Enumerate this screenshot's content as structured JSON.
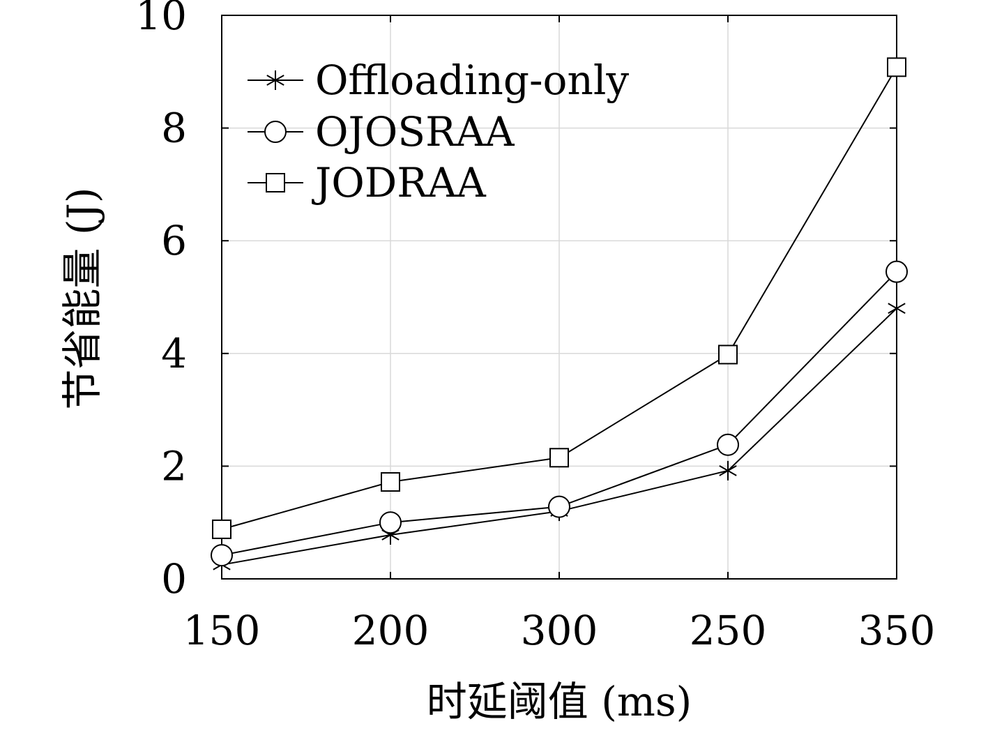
{
  "chart_data": {
    "type": "line",
    "categories": [
      "150",
      "200",
      "300",
      "250",
      "350"
    ],
    "xlabel": "时延阈值 (ms)",
    "ylabel": "节省能量 (J)",
    "ylim": [
      0,
      10
    ],
    "yticks": [
      0,
      2,
      4,
      6,
      8,
      10
    ],
    "grid": true,
    "legend_position": "top-left",
    "series": [
      {
        "name": "Offloading-only",
        "marker": "asterisk",
        "values": [
          0.25,
          0.78,
          1.2,
          1.92,
          4.8
        ]
      },
      {
        "name": "OJOSRAA",
        "marker": "circle",
        "values": [
          0.42,
          1.0,
          1.28,
          2.38,
          5.45
        ]
      },
      {
        "name": "JODRAA",
        "marker": "square",
        "values": [
          0.88,
          1.72,
          2.15,
          3.98,
          9.08
        ]
      }
    ],
    "colors": {
      "line": "#000000",
      "grid": "#d9d9d9"
    }
  }
}
